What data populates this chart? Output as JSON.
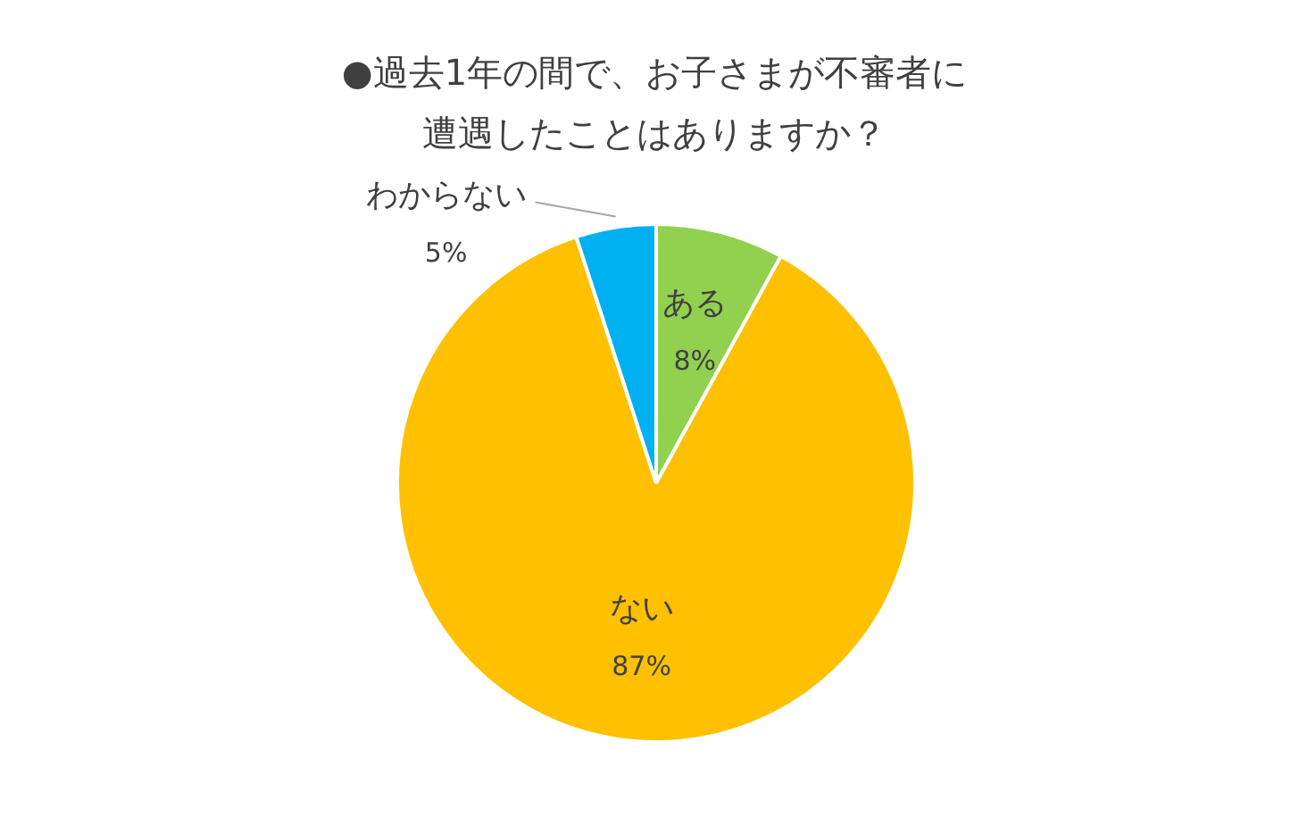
{
  "chart_data": {
    "type": "pie",
    "title": "●過去1年の間で、お子さまが不審者に遭遇したことはありますか？",
    "categories": [
      "ある",
      "ない",
      "わからない"
    ],
    "values": [
      8,
      87,
      5
    ],
    "value_labels": [
      "8%",
      "87%",
      "5%"
    ],
    "colors": [
      "#92d050",
      "#ffc000",
      "#00b0f0"
    ]
  }
}
